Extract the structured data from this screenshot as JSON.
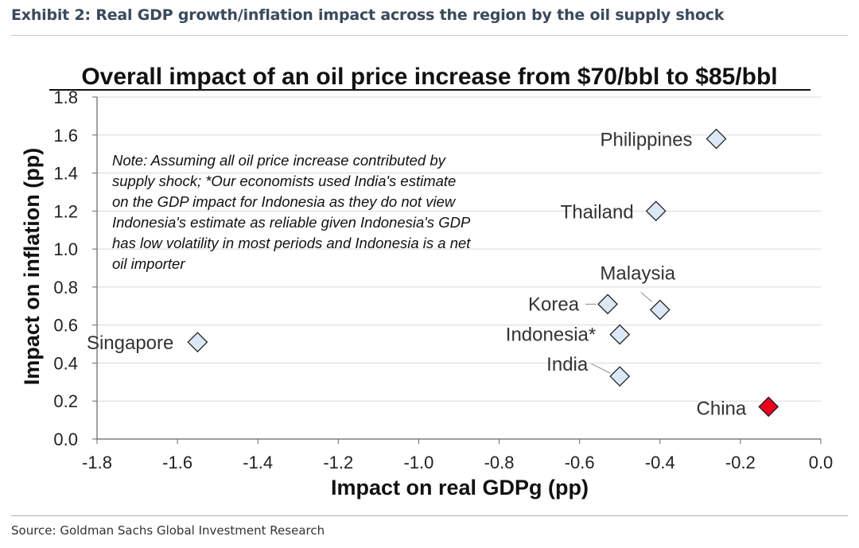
{
  "header": {
    "exhibit_title": "Exhibit 2: Real GDP growth/inflation impact across the region by the oil supply shock"
  },
  "footer": {
    "source": "Source: Goldman Sachs Global Investment Research"
  },
  "colors": {
    "marker_fill": "#dbe9f7",
    "highlight_fill": "#e8001c",
    "marker_stroke": "#222222",
    "grid": "#d9d9d9"
  },
  "chart_data": {
    "type": "scatter",
    "title": "Overall impact of an oil price increase from $70/bbl to $85/bbl",
    "xlabel": "Impact on real GDPg (pp)",
    "ylabel": "Impact on inflation (pp)",
    "xlim": [
      -1.8,
      0.0
    ],
    "ylim": [
      0.0,
      1.8
    ],
    "xticks": [
      "-1.8",
      "-1.6",
      "-1.4",
      "-1.2",
      "-1.0",
      "-0.8",
      "-0.6",
      "-0.4",
      "-0.2",
      "0.0"
    ],
    "yticks": [
      "0.0",
      "0.2",
      "0.4",
      "0.6",
      "0.8",
      "1.0",
      "1.2",
      "1.4",
      "1.6",
      "1.8"
    ],
    "grid": "horizontal",
    "note": [
      "Note: Assuming all oil price increase contributed by",
      "supply shock; *Our economists used India's estimate",
      "on the GDP impact for Indonesia as they do not view",
      "Indonesia's estimate as reliable given Indonesia's GDP",
      "has low volatility in most periods and Indonesia is a net",
      "oil importer"
    ],
    "points": [
      {
        "name": "Philippines",
        "x": -0.26,
        "y": 1.58,
        "highlight": false
      },
      {
        "name": "Thailand",
        "x": -0.41,
        "y": 1.2,
        "highlight": false
      },
      {
        "name": "Malaysia",
        "x": -0.4,
        "y": 0.68,
        "highlight": false
      },
      {
        "name": "Korea",
        "x": -0.53,
        "y": 0.71,
        "highlight": false
      },
      {
        "name": "Indonesia*",
        "x": -0.5,
        "y": 0.55,
        "highlight": false
      },
      {
        "name": "India",
        "x": -0.5,
        "y": 0.33,
        "highlight": false
      },
      {
        "name": "Singapore",
        "x": -1.55,
        "y": 0.51,
        "highlight": false
      },
      {
        "name": "China",
        "x": -0.13,
        "y": 0.17,
        "highlight": true
      }
    ]
  }
}
